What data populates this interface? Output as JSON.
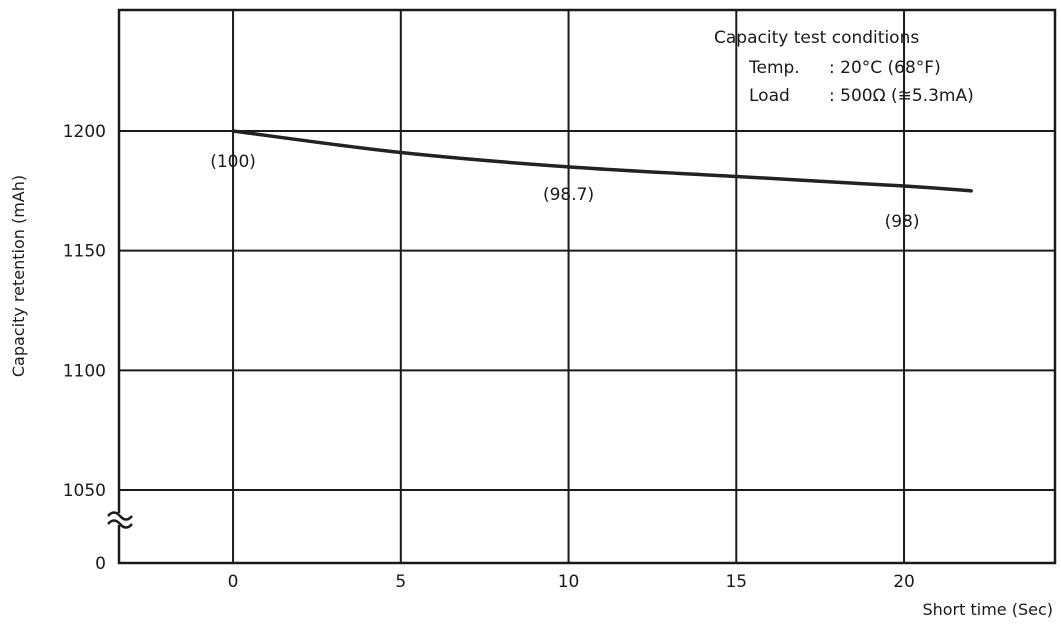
{
  "chart_data": {
    "type": "line",
    "xlabel": "Short time (Sec)",
    "ylabel": "Capacity retention (mAh)",
    "x_ticks": [
      "0",
      "5",
      "10",
      "15",
      "20"
    ],
    "y_ticks": [
      "1050",
      "1100",
      "1150",
      "1200"
    ],
    "y_zero_label": "0",
    "xlim": [
      -3.4,
      24.5
    ],
    "ylim": [
      1020,
      1250
    ],
    "axis_break": true,
    "grid": true,
    "series": [
      {
        "x": [
          0,
          5,
          10,
          15,
          20,
          22
        ],
        "y": [
          1200,
          1191,
          1185,
          1181,
          1177,
          1175
        ],
        "color": "#222222"
      }
    ],
    "data_labels": [
      {
        "x": 0,
        "y": 1200,
        "text": "(100)"
      },
      {
        "x": 10,
        "y": 1185,
        "text": "(98.7)"
      },
      {
        "x": 20,
        "y": 1177,
        "text": "(98)"
      }
    ],
    "conditions": {
      "title": "Capacity test conditions",
      "temp_label": "Temp.",
      "temp_value": ": 20°C (68°F)",
      "load_label": "Load",
      "load_value": ": 500Ω (≅5.3mA)"
    }
  }
}
